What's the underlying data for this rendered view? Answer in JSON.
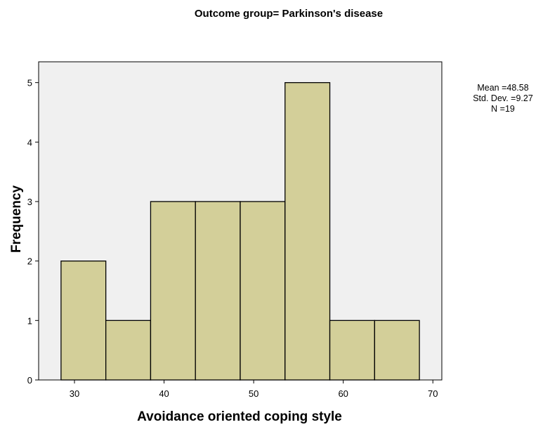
{
  "chart_data": {
    "type": "bar",
    "title": "Outcome group= Parkinson's disease",
    "xlabel": "Avoidance oriented coping style",
    "ylabel": "Frequency",
    "bins": [
      {
        "start": 28.5,
        "end": 33.5,
        "count": 2
      },
      {
        "start": 33.5,
        "end": 38.5,
        "count": 1
      },
      {
        "start": 38.5,
        "end": 43.5,
        "count": 3
      },
      {
        "start": 43.5,
        "end": 48.5,
        "count": 3
      },
      {
        "start": 48.5,
        "end": 53.5,
        "count": 3
      },
      {
        "start": 53.5,
        "end": 58.5,
        "count": 5
      },
      {
        "start": 58.5,
        "end": 63.5,
        "count": 1
      },
      {
        "start": 63.5,
        "end": 68.5,
        "count": 1
      }
    ],
    "xlim": [
      26,
      71
    ],
    "ylim": [
      0,
      5.35
    ],
    "xticks": [
      30,
      40,
      50,
      60,
      70
    ],
    "yticks": [
      0,
      1,
      2,
      3,
      4,
      5
    ],
    "bar_color": "#d3cf99",
    "plot_background": "#f0f0f0",
    "stats": {
      "mean": "Mean =48.58",
      "std_dev": "Std. Dev. =9.27",
      "n": "N =19"
    },
    "grid": false,
    "legend": "none"
  }
}
